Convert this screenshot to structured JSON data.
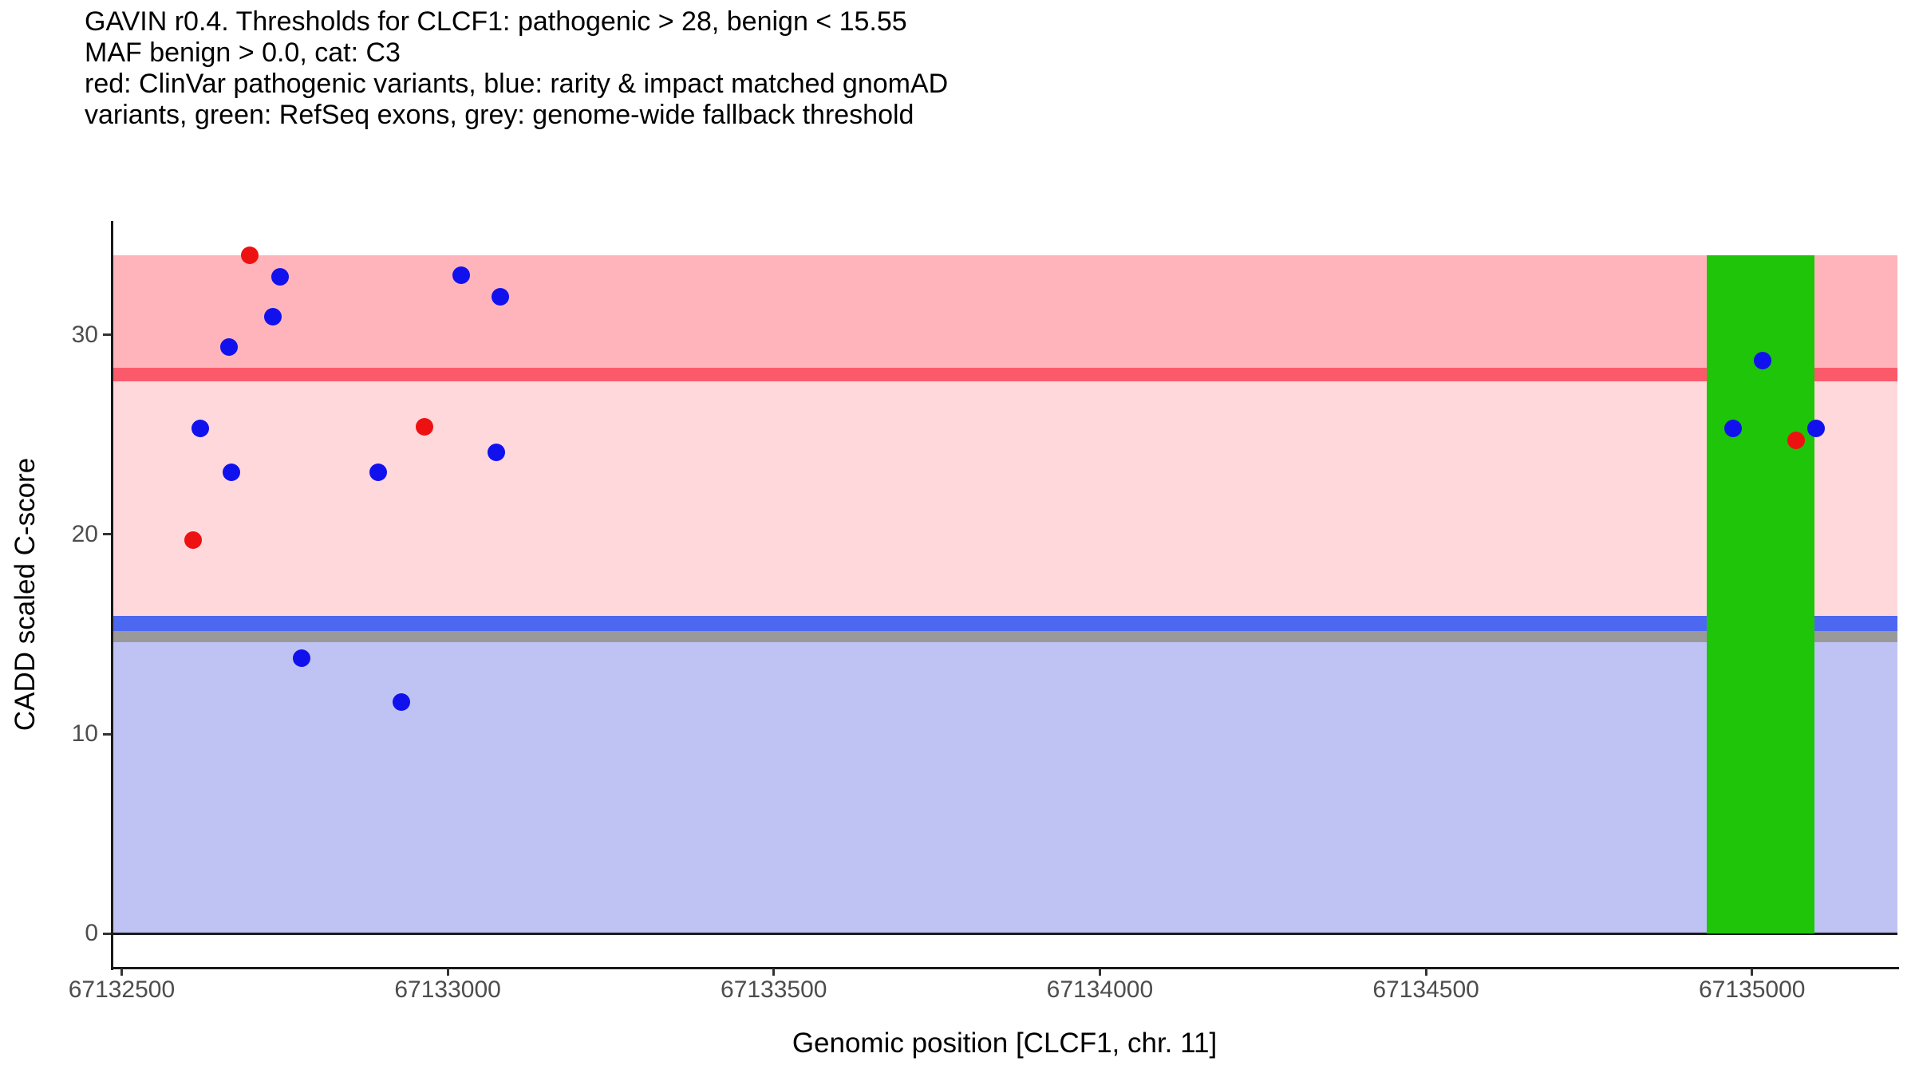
{
  "title": {
    "lines": [
      "GAVIN r0.4. Thresholds for CLCF1: pathogenic > 28, benign < 15.55",
      "MAF benign > 0.0, cat: C3",
      "red: ClinVar pathogenic variants, blue: rarity & impact matched gnomAD",
      "variants, green: RefSeq exons, grey: genome-wide fallback threshold"
    ]
  },
  "x_axis": {
    "title": "Genomic position [CLCF1, chr. 11]",
    "ticks": [
      {
        "label": "67132500",
        "value": 67132500
      },
      {
        "label": "67133000",
        "value": 67133000
      },
      {
        "label": "67133500",
        "value": 67133500
      },
      {
        "label": "67134000",
        "value": 67134000
      },
      {
        "label": "67134500",
        "value": 67134500
      },
      {
        "label": "67135000",
        "value": 67135000
      }
    ]
  },
  "y_axis": {
    "title": "CADD scaled C-score",
    "ticks": [
      {
        "label": "0",
        "value": 0
      },
      {
        "label": "10",
        "value": 10
      },
      {
        "label": "20",
        "value": 20
      },
      {
        "label": "30",
        "value": 30
      }
    ]
  },
  "colors": {
    "pathogenic_zone": "#ffb4bc",
    "vus_zone": "#ffd8dc",
    "benign_zone": "#bec3f4",
    "pathogenic_line": "#fb5a6a",
    "benign_line": "#4d68f0",
    "fallback_line": "#999999",
    "exon": "#1ec508",
    "clinvar_point": "#ee1111",
    "gnomad_point": "#1111ee",
    "axis_line": "#1a1a1a",
    "tick_mark": "#333333",
    "tick_label": "#4d4d4d",
    "text": "#000000"
  },
  "chart_data": {
    "type": "scatter",
    "xlabel": "Genomic position [CLCF1, chr. 11]",
    "ylabel": "CADD scaled C-score",
    "x_domain": [
      67132486,
      67135223
    ],
    "y_domain": [
      -1.7,
      35.7
    ],
    "x_ticks": [
      67132500,
      67133000,
      67133500,
      67134000,
      67134500,
      67135000
    ],
    "y_ticks": [
      0,
      10,
      20,
      30
    ],
    "grid": false,
    "legend": "described in title text",
    "thresholds": {
      "pathogenic_gt": 28,
      "benign_lt": 15.55,
      "genome_wide_fallback": 15,
      "maf_benign_gt": 0.0,
      "category": "C3"
    },
    "bands": [
      {
        "name": "pathogenic-zone",
        "ymin": 28,
        "ymax": 34,
        "color_key": "pathogenic_zone"
      },
      {
        "name": "vus-zone",
        "ymin": 15.55,
        "ymax": 28,
        "color_key": "vus_zone"
      },
      {
        "name": "benign-zone",
        "ymin": 0,
        "ymax": 15.55,
        "color_key": "benign_zone"
      }
    ],
    "threshold_lines": [
      {
        "name": "pathogenic",
        "value": 28,
        "thickness_px": 17,
        "color_key": "pathogenic_line"
      },
      {
        "name": "benign",
        "value": 15.55,
        "thickness_px": 19,
        "color_key": "benign_line"
      },
      {
        "name": "genome-wide-fallback",
        "value": 14.9,
        "thickness_px": 14,
        "color_key": "fallback_line"
      }
    ],
    "zero_line": {
      "value": 0,
      "thickness_px": 3,
      "color_key": "axis_line"
    },
    "exons": [
      {
        "name": "refseq-exon",
        "x_start": 67134930,
        "x_end": 67135096,
        "ymin": 0,
        "ymax": 34,
        "color_key": "exon"
      }
    ],
    "point_radius_px": 11,
    "series": [
      {
        "name": "gnomad-matched-variant",
        "color_key": "gnomad_point",
        "points": [
          [
            67132743,
            32.9
          ],
          [
            67133021,
            33.0
          ],
          [
            67133081,
            31.9
          ],
          [
            67132732,
            30.9
          ],
          [
            67132665,
            29.4
          ],
          [
            67132621,
            25.3
          ],
          [
            67133075,
            24.1
          ],
          [
            67132668,
            23.1
          ],
          [
            67132894,
            23.1
          ],
          [
            67132776,
            13.8
          ],
          [
            67132929,
            11.6
          ],
          [
            67135016,
            28.7
          ],
          [
            67134971,
            25.3
          ],
          [
            67135098,
            25.3
          ]
        ]
      },
      {
        "name": "clinvar-pathogenic-variant",
        "color_key": "clinvar_point",
        "points": [
          [
            67132696,
            34.0
          ],
          [
            67132965,
            25.4
          ],
          [
            67132610,
            19.7
          ],
          [
            67135068,
            24.7
          ]
        ]
      }
    ]
  }
}
